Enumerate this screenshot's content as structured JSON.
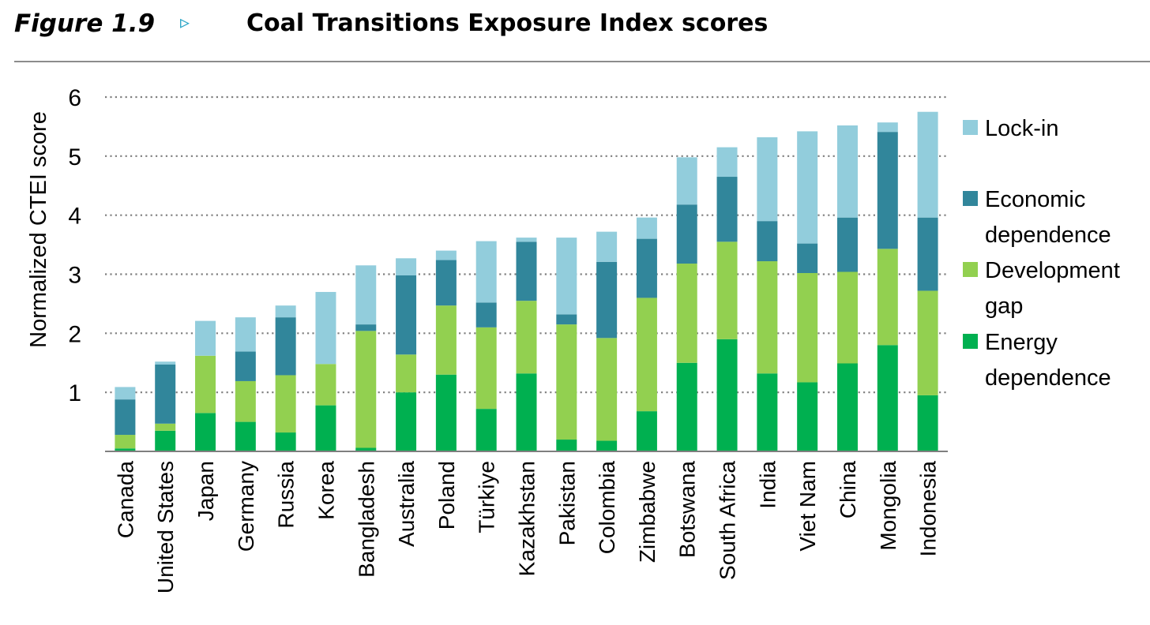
{
  "figure": {
    "label": "Figure 1.9",
    "arrow": "▹",
    "title": "Coal Transitions Exposure Index scores"
  },
  "colors": {
    "energy": "#00b050",
    "development": "#92d050",
    "economic": "#31869b",
    "lockin": "#92cddc",
    "grid": "#7f7f7f",
    "rule": "#8c8c8c"
  },
  "chart_data": {
    "type": "bar",
    "stacked": true,
    "title": "",
    "xlabel": "",
    "ylabel": "Normalized CTEI score",
    "ylim": [
      0,
      6
    ],
    "yticks": [
      1,
      2,
      3,
      4,
      5,
      6
    ],
    "grid": true,
    "legend_position": "right",
    "categories": [
      "Canada",
      "United States",
      "Japan",
      "Germany",
      "Russia",
      "Korea",
      "Bangladesh",
      "Australia",
      "Poland",
      "Türkiye",
      "Kazakhstan",
      "Pakistan",
      "Colombia",
      "Zimbabwe",
      "Botswana",
      "South Africa",
      "India",
      "Viet Nam",
      "China",
      "Mongolia",
      "Indonesia"
    ],
    "series": [
      {
        "name": "Energy dependence",
        "color_key": "energy",
        "values": [
          0.05,
          0.35,
          0.65,
          0.5,
          0.32,
          0.78,
          0.06,
          1.0,
          1.3,
          0.72,
          1.32,
          0.2,
          0.18,
          0.68,
          1.5,
          1.9,
          1.32,
          1.17,
          1.49,
          1.8,
          0.95
        ]
      },
      {
        "name": "Development gap",
        "color_key": "development",
        "values": [
          0.23,
          0.12,
          0.97,
          0.69,
          0.97,
          0.7,
          1.98,
          0.64,
          1.17,
          1.38,
          1.23,
          1.95,
          1.74,
          1.92,
          1.68,
          1.65,
          1.9,
          1.85,
          1.55,
          1.63,
          1.77
        ]
      },
      {
        "name": "Economic dependence",
        "color_key": "economic",
        "values": [
          0.6,
          1.0,
          0.0,
          0.5,
          0.98,
          0.0,
          0.11,
          1.34,
          0.77,
          0.42,
          1.0,
          0.17,
          1.29,
          1.0,
          1.0,
          1.1,
          0.68,
          0.5,
          0.92,
          1.98,
          1.24
        ]
      },
      {
        "name": "Lock-in",
        "color_key": "lockin",
        "values": [
          0.21,
          0.05,
          0.59,
          0.58,
          0.2,
          1.22,
          1.0,
          0.29,
          0.16,
          1.04,
          0.07,
          1.3,
          0.51,
          0.36,
          0.8,
          0.5,
          1.42,
          1.9,
          1.56,
          0.16,
          1.79
        ]
      }
    ]
  },
  "legend": {
    "items": [
      {
        "line1": "Lock-in",
        "line2": "",
        "color_key": "lockin"
      },
      {
        "line1": "Economic",
        "line2": "dependence",
        "color_key": "economic"
      },
      {
        "line1": "Development",
        "line2": "gap",
        "color_key": "development"
      },
      {
        "line1": "Energy",
        "line2": "dependence",
        "color_key": "energy"
      }
    ]
  }
}
